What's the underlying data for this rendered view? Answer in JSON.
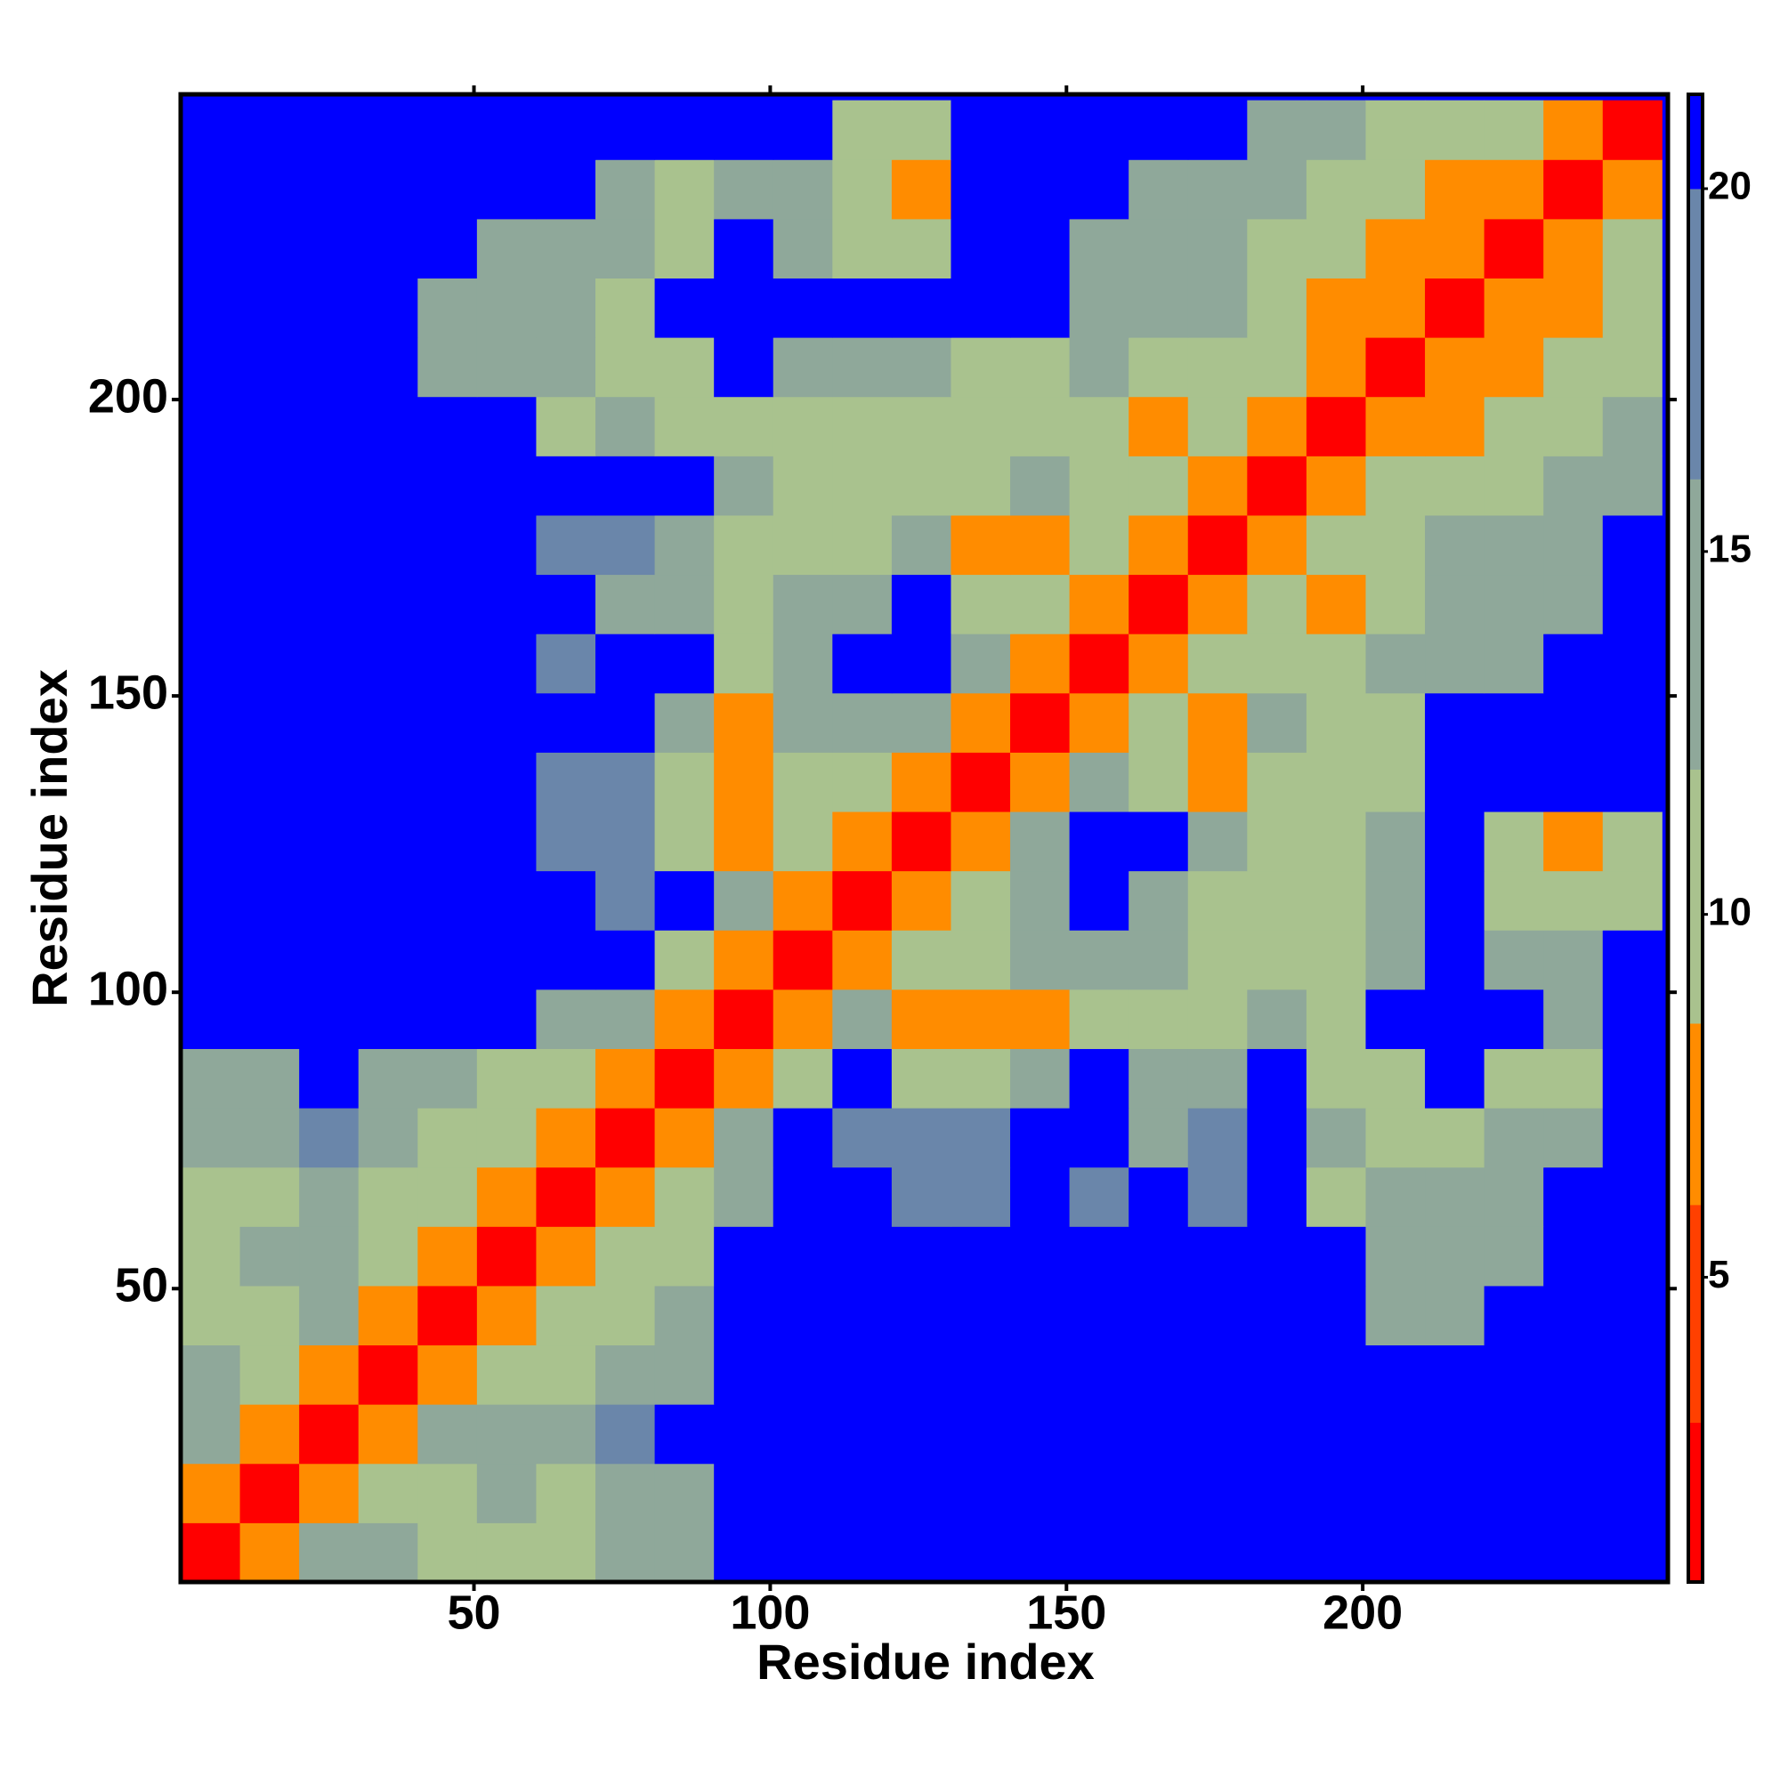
{
  "chart_data": {
    "type": "heatmap",
    "x_label": "Residue index",
    "y_label": "Residue index",
    "x": [
      5.5,
      15.5,
      25.5,
      35.5,
      45.5,
      55.5,
      65.5,
      75.5,
      85.5,
      95.5,
      105.5,
      115.5,
      125.5,
      135.5,
      145.5,
      155.5,
      165.5,
      175.5,
      185.5,
      195.5,
      205.5,
      215.5,
      225.5,
      235.5,
      245.5
    ],
    "y": [
      5.5,
      15.5,
      25.5,
      35.5,
      45.5,
      55.5,
      65.5,
      75.5,
      85.5,
      95.5,
      105.5,
      115.5,
      125.5,
      135.5,
      145.5,
      155.5,
      165.5,
      175.5,
      185.5,
      195.5,
      205.5,
      215.5,
      225.5,
      235.5,
      245.5
    ],
    "z": [
      [
        2,
        8,
        12,
        12,
        11,
        11,
        10,
        12,
        15,
        21,
        21,
        21,
        21,
        21,
        21,
        21,
        21,
        21,
        21,
        21,
        21,
        21,
        21,
        21,
        21
      ],
      [
        8,
        2,
        8,
        11,
        11,
        12,
        11,
        13,
        15,
        21,
        21,
        21,
        21,
        21,
        21,
        21,
        21,
        21,
        21,
        21,
        21,
        21,
        21,
        21,
        21
      ],
      [
        12,
        8,
        2,
        8,
        12,
        12,
        13,
        18,
        21,
        21,
        21,
        21,
        21,
        21,
        21,
        21,
        21,
        21,
        21,
        21,
        21,
        21,
        21,
        21,
        21
      ],
      [
        12,
        11,
        8,
        2,
        8,
        10,
        11,
        13,
        14,
        21,
        21,
        21,
        21,
        21,
        21,
        21,
        21,
        21,
        21,
        21,
        21,
        21,
        21,
        21,
        21
      ],
      [
        11,
        11,
        12,
        8,
        2,
        8,
        9,
        11,
        14,
        21,
        21,
        21,
        21,
        21,
        21,
        21,
        21,
        21,
        21,
        21,
        13,
        12,
        21,
        21,
        21
      ],
      [
        11,
        12,
        12,
        10,
        8,
        2,
        8,
        9,
        11,
        21,
        21,
        21,
        21,
        21,
        21,
        21,
        21,
        21,
        21,
        21,
        14,
        12,
        14,
        21,
        21
      ],
      [
        10,
        11,
        13,
        11,
        9,
        8,
        2,
        8,
        11,
        15,
        21,
        21,
        18,
        18,
        21,
        17,
        21,
        18,
        21,
        11,
        12,
        12,
        14,
        21,
        21
      ],
      [
        12,
        13,
        18,
        13,
        11,
        9,
        8,
        2,
        8,
        12,
        21,
        18,
        17,
        18,
        21,
        21,
        15,
        16,
        21,
        12,
        11,
        11,
        13,
        12,
        21
      ],
      [
        15,
        15,
        21,
        14,
        14,
        11,
        11,
        8,
        2,
        8,
        11,
        21,
        10,
        10,
        12,
        21,
        14,
        15,
        21,
        10,
        10,
        21,
        11,
        11,
        21
      ],
      [
        21,
        21,
        21,
        21,
        21,
        21,
        15,
        12,
        8,
        2,
        8,
        12,
        8,
        7,
        8,
        11,
        10,
        10,
        12,
        11,
        21,
        21,
        21,
        12,
        21
      ],
      [
        21,
        21,
        21,
        21,
        21,
        21,
        21,
        21,
        11,
        8,
        2,
        8,
        11,
        11,
        12,
        12,
        12,
        11,
        11,
        10,
        13,
        21,
        12,
        12,
        21
      ],
      [
        21,
        21,
        21,
        21,
        21,
        21,
        21,
        18,
        21,
        12,
        8,
        2,
        8,
        10,
        12,
        21,
        14,
        10,
        10,
        9,
        12,
        21,
        9,
        9,
        9
      ],
      [
        21,
        21,
        21,
        21,
        21,
        21,
        18,
        17,
        10,
        8,
        11,
        8,
        2,
        8,
        12,
        21,
        21,
        12,
        11,
        11,
        14,
        21,
        11,
        8,
        10
      ],
      [
        21,
        21,
        21,
        21,
        21,
        21,
        18,
        18,
        10,
        7,
        11,
        10,
        8,
        2,
        8,
        12,
        9,
        6,
        11,
        10,
        11,
        21,
        21,
        21,
        21
      ],
      [
        21,
        21,
        21,
        21,
        21,
        21,
        21,
        21,
        12,
        8,
        12,
        12,
        12,
        8,
        2,
        8,
        10,
        7,
        12,
        10,
        11,
        21,
        21,
        21,
        21
      ],
      [
        21,
        21,
        21,
        21,
        21,
        21,
        17,
        21,
        21,
        11,
        12,
        21,
        21,
        12,
        8,
        2,
        8,
        9,
        10,
        9,
        12,
        13,
        15,
        21,
        21
      ],
      [
        21,
        21,
        21,
        21,
        21,
        21,
        21,
        15,
        14,
        10,
        12,
        14,
        21,
        9,
        10,
        8,
        2,
        8,
        9,
        8,
        10,
        13,
        13,
        14,
        21
      ],
      [
        21,
        21,
        21,
        21,
        21,
        21,
        18,
        16,
        15,
        10,
        11,
        10,
        12,
        6,
        7,
        9,
        8,
        2,
        8,
        9,
        10,
        13,
        14,
        15,
        21
      ],
      [
        21,
        21,
        21,
        21,
        21,
        21,
        21,
        21,
        21,
        12,
        11,
        10,
        11,
        11,
        12,
        10,
        9,
        8,
        2,
        8,
        9,
        10,
        11,
        12,
        14
      ],
      [
        21,
        21,
        21,
        21,
        21,
        21,
        11,
        12,
        10,
        11,
        10,
        9,
        11,
        10,
        10,
        9,
        8,
        9,
        8,
        2,
        8,
        8,
        9,
        10,
        13
      ],
      [
        21,
        21,
        21,
        21,
        13,
        14,
        12,
        11,
        10,
        21,
        13,
        12,
        14,
        11,
        11,
        12,
        10,
        10,
        9,
        8,
        2,
        8,
        8,
        9,
        11
      ],
      [
        21,
        21,
        21,
        21,
        12,
        12,
        12,
        11,
        21,
        21,
        21,
        21,
        21,
        21,
        21,
        13,
        13,
        13,
        10,
        8,
        8,
        2,
        8,
        8,
        9
      ],
      [
        21,
        21,
        21,
        21,
        21,
        14,
        14,
        13,
        11,
        21,
        12,
        9,
        11,
        21,
        21,
        15,
        13,
        14,
        11,
        9,
        8,
        8,
        2,
        8,
        9
      ],
      [
        21,
        21,
        21,
        21,
        21,
        21,
        21,
        12,
        11,
        12,
        12,
        9,
        8,
        21,
        21,
        21,
        14,
        15,
        12,
        10,
        9,
        8,
        8,
        2,
        8
      ],
      [
        21,
        21,
        21,
        21,
        21,
        21,
        21,
        21,
        21,
        21,
        21,
        9,
        10,
        21,
        21,
        21,
        21,
        21,
        14,
        13,
        11,
        9,
        9,
        8,
        2
      ]
    ],
    "xlim": [
      0.5,
      251.5
    ],
    "ylim": [
      0.5,
      251.5
    ],
    "xticks": [
      50,
      100,
      150,
      200
    ],
    "yticks": [
      50,
      100,
      150,
      200
    ],
    "color_bins": [
      0.8,
      3,
      6,
      8.5,
      12,
      16,
      20,
      21.3
    ],
    "colors": [
      "#ff0000",
      "#ff4000",
      "#ff8c00",
      "#a9c28e",
      "#8fa89a",
      "#6a86aa",
      "#0000ff"
    ],
    "colorbar_ticks": [
      5,
      10,
      15,
      20
    ]
  }
}
